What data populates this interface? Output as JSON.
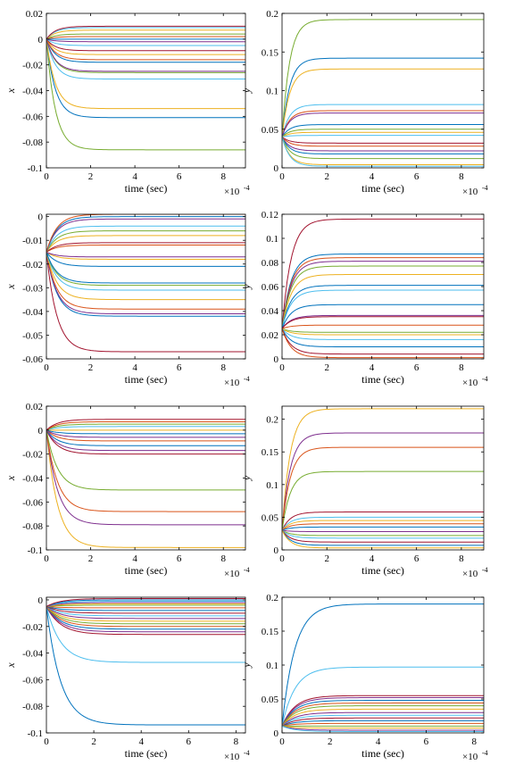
{
  "chart_data": [
    {
      "type": "line",
      "panel": "row1-left",
      "xlabel": "time (sec)",
      "ylabel": "x",
      "xlim": [
        0,
        9
      ],
      "ylim": [
        -0.1,
        0.02
      ],
      "x_multiplier": "×10",
      "x_exponent": "-4",
      "xticks": [
        0,
        2,
        4,
        6,
        8
      ],
      "xtick_labels": [
        "0",
        "2",
        "4",
        "6",
        "8"
      ],
      "yticks": [
        -0.1,
        -0.08,
        -0.06,
        -0.04,
        -0.02,
        0,
        0.02
      ],
      "ytick_labels": [
        "-0.1",
        "-0.08",
        "-0.06",
        "-0.04",
        "-0.02",
        "0",
        "0.02"
      ],
      "settle_time": 1.2,
      "series": [
        {
          "start": 0.0,
          "final": -0.086,
          "color": "#77AC30"
        },
        {
          "start": 0.0,
          "final": -0.061,
          "color": "#0072BD"
        },
        {
          "start": 0.0,
          "final": -0.054,
          "color": "#EDB120"
        },
        {
          "start": 0.0,
          "final": -0.031,
          "color": "#4DBEEE"
        },
        {
          "start": 0.0,
          "final": -0.026,
          "color": "#77AC30"
        },
        {
          "start": 0.0,
          "final": -0.025,
          "color": "#7E2F8E"
        },
        {
          "start": 0.0,
          "final": -0.018,
          "color": "#0072BD"
        },
        {
          "start": 0.0,
          "final": -0.016,
          "color": "#D95319"
        },
        {
          "start": 0.0,
          "final": -0.012,
          "color": "#EDB120"
        },
        {
          "start": 0.0,
          "final": -0.009,
          "color": "#A2142F"
        },
        {
          "start": 0.0,
          "final": -0.005,
          "color": "#4DBEEE"
        },
        {
          "start": 0.0,
          "final": -0.002,
          "color": "#7E2F8E"
        },
        {
          "start": 0.0,
          "final": 0.0,
          "color": "#0072BD"
        },
        {
          "start": 0.0,
          "final": 0.002,
          "color": "#D95319"
        },
        {
          "start": 0.0,
          "final": 0.004,
          "color": "#77AC30"
        },
        {
          "start": 0.0,
          "final": 0.007,
          "color": "#EDB120"
        },
        {
          "start": 0.0,
          "final": 0.009,
          "color": "#4DBEEE"
        },
        {
          "start": 0.0,
          "final": 0.01,
          "color": "#A2142F"
        }
      ]
    },
    {
      "type": "line",
      "panel": "row1-right",
      "xlabel": "time (sec)",
      "ylabel": "y",
      "xlim": [
        0,
        9
      ],
      "ylim": [
        0,
        0.2
      ],
      "x_multiplier": "×10",
      "x_exponent": "-4",
      "xticks": [
        0,
        2,
        4,
        6,
        8
      ],
      "xtick_labels": [
        "0",
        "2",
        "4",
        "6",
        "8"
      ],
      "yticks": [
        0,
        0.05,
        0.1,
        0.15,
        0.2
      ],
      "ytick_labels": [
        "0",
        "0.05",
        "0.1",
        "0.15",
        "0.2"
      ],
      "settle_time": 1.0,
      "series": [
        {
          "start": 0.04,
          "final": 0.192,
          "color": "#77AC30"
        },
        {
          "start": 0.04,
          "final": 0.142,
          "color": "#0072BD"
        },
        {
          "start": 0.04,
          "final": 0.128,
          "color": "#EDB120"
        },
        {
          "start": 0.04,
          "final": 0.082,
          "color": "#4DBEEE"
        },
        {
          "start": 0.04,
          "final": 0.074,
          "color": "#D95319"
        },
        {
          "start": 0.04,
          "final": 0.071,
          "color": "#7E2F8E"
        },
        {
          "start": 0.04,
          "final": 0.056,
          "color": "#0072BD"
        },
        {
          "start": 0.04,
          "final": 0.05,
          "color": "#77AC30"
        },
        {
          "start": 0.04,
          "final": 0.046,
          "color": "#EDB120"
        },
        {
          "start": 0.04,
          "final": 0.042,
          "color": "#4DBEEE"
        },
        {
          "start": 0.04,
          "final": 0.032,
          "color": "#A2142F"
        },
        {
          "start": 0.04,
          "final": 0.028,
          "color": "#D95319"
        },
        {
          "start": 0.04,
          "final": 0.022,
          "color": "#7E2F8E"
        },
        {
          "start": 0.04,
          "final": 0.018,
          "color": "#0072BD"
        },
        {
          "start": 0.04,
          "final": 0.012,
          "color": "#77AC30"
        },
        {
          "start": 0.04,
          "final": 0.004,
          "color": "#EDB120"
        },
        {
          "start": 0.04,
          "final": 0.002,
          "color": "#4DBEEE"
        }
      ]
    },
    {
      "type": "line",
      "panel": "row2-left",
      "xlabel": "time (sec)",
      "ylabel": "x",
      "xlim": [
        0,
        9
      ],
      "ylim": [
        -0.06,
        0.001
      ],
      "x_multiplier": "×10",
      "x_exponent": "-4",
      "xticks": [
        0,
        2,
        4,
        6,
        8
      ],
      "xtick_labels": [
        "0",
        "2",
        "4",
        "6",
        "8"
      ],
      "yticks": [
        -0.06,
        -0.05,
        -0.04,
        -0.03,
        -0.02,
        -0.01,
        0
      ],
      "ytick_labels": [
        "-0.06",
        "-0.05",
        "-0.04",
        "-0.03",
        "-0.02",
        "-0.01",
        "0"
      ],
      "settle_time": 1.4,
      "series": [
        {
          "start": -0.015,
          "final": -0.057,
          "color": "#A2142F"
        },
        {
          "start": -0.015,
          "final": -0.042,
          "color": "#0072BD"
        },
        {
          "start": -0.015,
          "final": -0.041,
          "color": "#7E2F8E"
        },
        {
          "start": -0.015,
          "final": -0.039,
          "color": "#D95319"
        },
        {
          "start": -0.015,
          "final": -0.035,
          "color": "#EDB120"
        },
        {
          "start": -0.015,
          "final": -0.031,
          "color": "#4DBEEE"
        },
        {
          "start": -0.015,
          "final": -0.029,
          "color": "#77AC30"
        },
        {
          "start": -0.015,
          "final": -0.028,
          "color": "#0072BD"
        },
        {
          "start": -0.015,
          "final": -0.021,
          "color": "#0072BD"
        },
        {
          "start": -0.015,
          "final": -0.018,
          "color": "#EDB120"
        },
        {
          "start": -0.015,
          "final": -0.017,
          "color": "#7E2F8E"
        },
        {
          "start": -0.015,
          "final": -0.012,
          "color": "#D95319"
        },
        {
          "start": -0.015,
          "final": -0.011,
          "color": "#A2142F"
        },
        {
          "start": -0.015,
          "final": -0.008,
          "color": "#EDB120"
        },
        {
          "start": -0.015,
          "final": -0.006,
          "color": "#77AC30"
        },
        {
          "start": -0.015,
          "final": -0.004,
          "color": "#4DBEEE"
        },
        {
          "start": -0.015,
          "final": -0.001,
          "color": "#7E2F8E"
        },
        {
          "start": -0.015,
          "final": 0.0,
          "color": "#0072BD"
        },
        {
          "start": -0.015,
          "final": 0.001,
          "color": "#D95319"
        }
      ]
    },
    {
      "type": "line",
      "panel": "row2-right",
      "xlabel": "time (sec)",
      "ylabel": "y",
      "xlim": [
        0,
        9
      ],
      "ylim": [
        0,
        0.12
      ],
      "x_multiplier": "×10",
      "x_exponent": "-4",
      "xticks": [
        0,
        2,
        4,
        6,
        8
      ],
      "xtick_labels": [
        "0",
        "2",
        "4",
        "6",
        "8"
      ],
      "yticks": [
        0,
        0.02,
        0.04,
        0.06,
        0.08,
        0.1,
        0.12
      ],
      "ytick_labels": [
        "0",
        "0.02",
        "0.04",
        "0.06",
        "0.08",
        "0.1",
        "0.12"
      ],
      "settle_time": 1.2,
      "series": [
        {
          "start": 0.025,
          "final": 0.116,
          "color": "#A2142F"
        },
        {
          "start": 0.025,
          "final": 0.087,
          "color": "#0072BD"
        },
        {
          "start": 0.025,
          "final": 0.084,
          "color": "#D95319"
        },
        {
          "start": 0.025,
          "final": 0.081,
          "color": "#7E2F8E"
        },
        {
          "start": 0.025,
          "final": 0.077,
          "color": "#77AC30"
        },
        {
          "start": 0.025,
          "final": 0.07,
          "color": "#EDB120"
        },
        {
          "start": 0.025,
          "final": 0.061,
          "color": "#0072BD"
        },
        {
          "start": 0.025,
          "final": 0.057,
          "color": "#4DBEEE"
        },
        {
          "start": 0.025,
          "final": 0.045,
          "color": "#0072BD"
        },
        {
          "start": 0.025,
          "final": 0.036,
          "color": "#7E2F8E"
        },
        {
          "start": 0.025,
          "final": 0.035,
          "color": "#A2142F"
        },
        {
          "start": 0.025,
          "final": 0.028,
          "color": "#D95319"
        },
        {
          "start": 0.025,
          "final": 0.022,
          "color": "#77AC30"
        },
        {
          "start": 0.025,
          "final": 0.02,
          "color": "#EDB120"
        },
        {
          "start": 0.025,
          "final": 0.016,
          "color": "#4DBEEE"
        },
        {
          "start": 0.025,
          "final": 0.01,
          "color": "#0072BD"
        },
        {
          "start": 0.025,
          "final": 0.004,
          "color": "#A2142F"
        },
        {
          "start": 0.025,
          "final": 0.001,
          "color": "#D95319"
        }
      ]
    },
    {
      "type": "line",
      "panel": "row3-left",
      "xlabel": "time (sec)",
      "ylabel": "x",
      "xlim": [
        0,
        9
      ],
      "ylim": [
        -0.1,
        0.02
      ],
      "x_multiplier": "×10",
      "x_exponent": "-4",
      "xticks": [
        0,
        2,
        4,
        6,
        8
      ],
      "xtick_labels": [
        "0",
        "2",
        "4",
        "6",
        "8"
      ],
      "yticks": [
        -0.1,
        -0.08,
        -0.06,
        -0.04,
        -0.02,
        0,
        0.02
      ],
      "ytick_labels": [
        "-0.1",
        "-0.08",
        "-0.06",
        "-0.04",
        "-0.02",
        "0",
        "0.02"
      ],
      "settle_time": 1.5,
      "series": [
        {
          "start": 0.0,
          "final": -0.098,
          "color": "#EDB120"
        },
        {
          "start": 0.0,
          "final": -0.079,
          "color": "#7E2F8E"
        },
        {
          "start": 0.0,
          "final": -0.068,
          "color": "#D95319"
        },
        {
          "start": 0.0,
          "final": -0.05,
          "color": "#77AC30"
        },
        {
          "start": 0.0,
          "final": -0.02,
          "color": "#A2142F"
        },
        {
          "start": 0.0,
          "final": -0.017,
          "color": "#7E2F8E"
        },
        {
          "start": 0.0,
          "final": -0.013,
          "color": "#0072BD"
        },
        {
          "start": 0.0,
          "final": -0.009,
          "color": "#D95319"
        },
        {
          "start": 0.0,
          "final": -0.006,
          "color": "#7E2F8E"
        },
        {
          "start": 0.0,
          "final": -0.003,
          "color": "#0072BD"
        },
        {
          "start": 0.0,
          "final": 0.0,
          "color": "#EDB120"
        },
        {
          "start": 0.0,
          "final": 0.003,
          "color": "#4DBEEE"
        },
        {
          "start": 0.0,
          "final": 0.005,
          "color": "#77AC30"
        },
        {
          "start": 0.0,
          "final": 0.007,
          "color": "#D95319"
        },
        {
          "start": 0.0,
          "final": 0.009,
          "color": "#A2142F"
        }
      ]
    },
    {
      "type": "line",
      "panel": "row3-right",
      "xlabel": "time (sec)",
      "ylabel": "y",
      "xlim": [
        0,
        9
      ],
      "ylim": [
        0,
        0.22
      ],
      "x_multiplier": "×10",
      "x_exponent": "-4",
      "xticks": [
        0,
        2,
        4,
        6,
        8
      ],
      "xtick_labels": [
        "0",
        "2",
        "4",
        "6",
        "8"
      ],
      "yticks": [
        0,
        0.05,
        0.1,
        0.15,
        0.2
      ],
      "ytick_labels": [
        "0",
        "0.05",
        "0.1",
        "0.15",
        "0.2"
      ],
      "settle_time": 1.1,
      "series": [
        {
          "start": 0.03,
          "final": 0.216,
          "color": "#EDB120"
        },
        {
          "start": 0.03,
          "final": 0.179,
          "color": "#7E2F8E"
        },
        {
          "start": 0.03,
          "final": 0.157,
          "color": "#D95319"
        },
        {
          "start": 0.03,
          "final": 0.12,
          "color": "#77AC30"
        },
        {
          "start": 0.03,
          "final": 0.058,
          "color": "#A2142F"
        },
        {
          "start": 0.03,
          "final": 0.05,
          "color": "#4DBEEE"
        },
        {
          "start": 0.03,
          "final": 0.045,
          "color": "#EDB120"
        },
        {
          "start": 0.03,
          "final": 0.04,
          "color": "#D95319"
        },
        {
          "start": 0.03,
          "final": 0.035,
          "color": "#0072BD"
        },
        {
          "start": 0.03,
          "final": 0.028,
          "color": "#7E2F8E"
        },
        {
          "start": 0.03,
          "final": 0.022,
          "color": "#77AC30"
        },
        {
          "start": 0.03,
          "final": 0.018,
          "color": "#4DBEEE"
        },
        {
          "start": 0.03,
          "final": 0.012,
          "color": "#A2142F"
        },
        {
          "start": 0.03,
          "final": 0.007,
          "color": "#0072BD"
        },
        {
          "start": 0.03,
          "final": 0.003,
          "color": "#EDB120"
        }
      ]
    },
    {
      "type": "line",
      "panel": "row4-left",
      "xlabel": "time (sec)",
      "ylabel": "x",
      "xlim": [
        0,
        8.4
      ],
      "ylim": [
        -0.1,
        0.002
      ],
      "x_multiplier": "×10",
      "x_exponent": "-4",
      "xticks": [
        0,
        2,
        4,
        6,
        8
      ],
      "xtick_labels": [
        "0",
        "2",
        "4",
        "6",
        "8"
      ],
      "yticks": [
        -0.1,
        -0.08,
        -0.06,
        -0.04,
        -0.02,
        0
      ],
      "ytick_labels": [
        "-0.1",
        "-0.08",
        "-0.06",
        "-0.04",
        "-0.02",
        "0"
      ],
      "settle_time": 1.8,
      "series": [
        {
          "start": -0.005,
          "final": -0.094,
          "color": "#0072BD"
        },
        {
          "start": -0.005,
          "final": -0.047,
          "color": "#4DBEEE"
        },
        {
          "start": -0.005,
          "final": -0.026,
          "color": "#A2142F"
        },
        {
          "start": -0.005,
          "final": -0.024,
          "color": "#7E2F8E"
        },
        {
          "start": -0.005,
          "final": -0.022,
          "color": "#0072BD"
        },
        {
          "start": -0.005,
          "final": -0.02,
          "color": "#D95319"
        },
        {
          "start": -0.005,
          "final": -0.018,
          "color": "#77AC30"
        },
        {
          "start": -0.005,
          "final": -0.016,
          "color": "#EDB120"
        },
        {
          "start": -0.005,
          "final": -0.014,
          "color": "#7E2F8E"
        },
        {
          "start": -0.005,
          "final": -0.012,
          "color": "#4DBEEE"
        },
        {
          "start": -0.005,
          "final": -0.01,
          "color": "#A2142F"
        },
        {
          "start": -0.005,
          "final": -0.008,
          "color": "#0072BD"
        },
        {
          "start": -0.005,
          "final": -0.006,
          "color": "#D95319"
        },
        {
          "start": -0.005,
          "final": -0.004,
          "color": "#77AC30"
        },
        {
          "start": -0.005,
          "final": -0.003,
          "color": "#EDB120"
        },
        {
          "start": -0.005,
          "final": -0.002,
          "color": "#7E2F8E"
        },
        {
          "start": -0.005,
          "final": -0.001,
          "color": "#4DBEEE"
        },
        {
          "start": -0.005,
          "final": 0.0,
          "color": "#0072BD"
        },
        {
          "start": -0.005,
          "final": 0.001,
          "color": "#A2142F"
        }
      ]
    },
    {
      "type": "line",
      "panel": "row4-right",
      "xlabel": "time (sec)",
      "ylabel": "y",
      "xlim": [
        0,
        8.4
      ],
      "ylim": [
        0,
        0.2
      ],
      "x_multiplier": "×10",
      "x_exponent": "-4",
      "xticks": [
        0,
        2,
        4,
        6,
        8
      ],
      "xtick_labels": [
        "0",
        "2",
        "4",
        "6",
        "8"
      ],
      "yticks": [
        0,
        0.05,
        0.1,
        0.15,
        0.2
      ],
      "ytick_labels": [
        "0",
        "0.05",
        "0.1",
        "0.15",
        "0.2"
      ],
      "settle_time": 1.6,
      "series": [
        {
          "start": 0.01,
          "final": 0.19,
          "color": "#0072BD"
        },
        {
          "start": 0.01,
          "final": 0.097,
          "color": "#4DBEEE"
        },
        {
          "start": 0.01,
          "final": 0.055,
          "color": "#A2142F"
        },
        {
          "start": 0.01,
          "final": 0.052,
          "color": "#7E2F8E"
        },
        {
          "start": 0.01,
          "final": 0.048,
          "color": "#0072BD"
        },
        {
          "start": 0.01,
          "final": 0.044,
          "color": "#D95319"
        },
        {
          "start": 0.01,
          "final": 0.04,
          "color": "#77AC30"
        },
        {
          "start": 0.01,
          "final": 0.035,
          "color": "#EDB120"
        },
        {
          "start": 0.01,
          "final": 0.03,
          "color": "#7E2F8E"
        },
        {
          "start": 0.01,
          "final": 0.026,
          "color": "#4DBEEE"
        },
        {
          "start": 0.01,
          "final": 0.022,
          "color": "#A2142F"
        },
        {
          "start": 0.01,
          "final": 0.018,
          "color": "#0072BD"
        },
        {
          "start": 0.01,
          "final": 0.014,
          "color": "#D95319"
        },
        {
          "start": 0.01,
          "final": 0.01,
          "color": "#77AC30"
        },
        {
          "start": 0.01,
          "final": 0.007,
          "color": "#EDB120"
        },
        {
          "start": 0.01,
          "final": 0.004,
          "color": "#7E2F8E"
        },
        {
          "start": 0.01,
          "final": 0.002,
          "color": "#4DBEEE"
        }
      ]
    }
  ]
}
